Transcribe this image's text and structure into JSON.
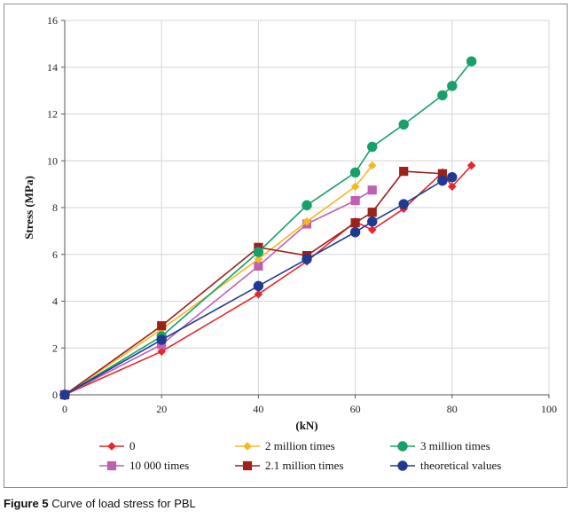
{
  "caption": {
    "figure_label": "Figure 5",
    "text": "Curve of load stress for PBL"
  },
  "chart_data": {
    "type": "line",
    "title": "Curve of load stress for PBL",
    "xlabel": "(kN)",
    "ylabel": "Stress (MPa)",
    "xlim": [
      0,
      100
    ],
    "ylim": [
      0,
      16
    ],
    "xticks": [
      0,
      20,
      40,
      60,
      80,
      100
    ],
    "yticks": [
      0,
      2,
      4,
      6,
      8,
      10,
      12,
      14,
      16
    ],
    "grid": true,
    "legend_position": "bottom",
    "series": [
      {
        "name": "0",
        "color": "#e8252b",
        "marker": "diamond",
        "points": [
          [
            0,
            0
          ],
          [
            20,
            1.85
          ],
          [
            40,
            4.3
          ],
          [
            50,
            5.7
          ],
          [
            60,
            7.4
          ],
          [
            63.5,
            7.05
          ],
          [
            70,
            7.95
          ],
          [
            78,
            9.5
          ],
          [
            80,
            8.9
          ],
          [
            84,
            9.8
          ]
        ]
      },
      {
        "name": "10 000 times",
        "color": "#c060b0",
        "marker": "square",
        "points": [
          [
            0,
            0
          ],
          [
            20,
            2.15
          ],
          [
            40,
            5.5
          ],
          [
            50,
            7.3
          ],
          [
            60,
            8.3
          ],
          [
            63.5,
            8.75
          ]
        ]
      },
      {
        "name": "2 million times",
        "color": "#f5b820",
        "marker": "diamond",
        "points": [
          [
            0,
            0
          ],
          [
            20,
            2.8
          ],
          [
            40,
            5.8
          ],
          [
            50,
            7.4
          ],
          [
            60,
            8.9
          ],
          [
            63.5,
            9.8
          ]
        ]
      },
      {
        "name": "2.1 million times",
        "color": "#9b2119",
        "marker": "square",
        "points": [
          [
            0,
            0
          ],
          [
            20,
            2.95
          ],
          [
            40,
            6.3
          ],
          [
            50,
            5.95
          ],
          [
            60,
            7.35
          ],
          [
            63.5,
            7.8
          ],
          [
            70,
            9.55
          ],
          [
            78,
            9.45
          ]
        ]
      },
      {
        "name": "3 million times",
        "color": "#16a06a",
        "marker": "circle",
        "points": [
          [
            0,
            0
          ],
          [
            20,
            2.5
          ],
          [
            40,
            6.1
          ],
          [
            50,
            8.1
          ],
          [
            60,
            9.5
          ],
          [
            63.5,
            10.6
          ],
          [
            70,
            11.55
          ],
          [
            78,
            12.8
          ],
          [
            80,
            13.2
          ],
          [
            84,
            14.25
          ]
        ]
      },
      {
        "name": "theoretical values",
        "color": "#1f3a93",
        "marker": "circle",
        "points": [
          [
            0,
            0
          ],
          [
            20,
            2.35
          ],
          [
            40,
            4.65
          ],
          [
            50,
            5.8
          ],
          [
            60,
            6.95
          ],
          [
            63.5,
            7.4
          ],
          [
            70,
            8.15
          ],
          [
            78,
            9.15
          ],
          [
            80,
            9.3
          ]
        ]
      }
    ],
    "legend_order": [
      0,
      2,
      4,
      1,
      3,
      5
    ]
  }
}
